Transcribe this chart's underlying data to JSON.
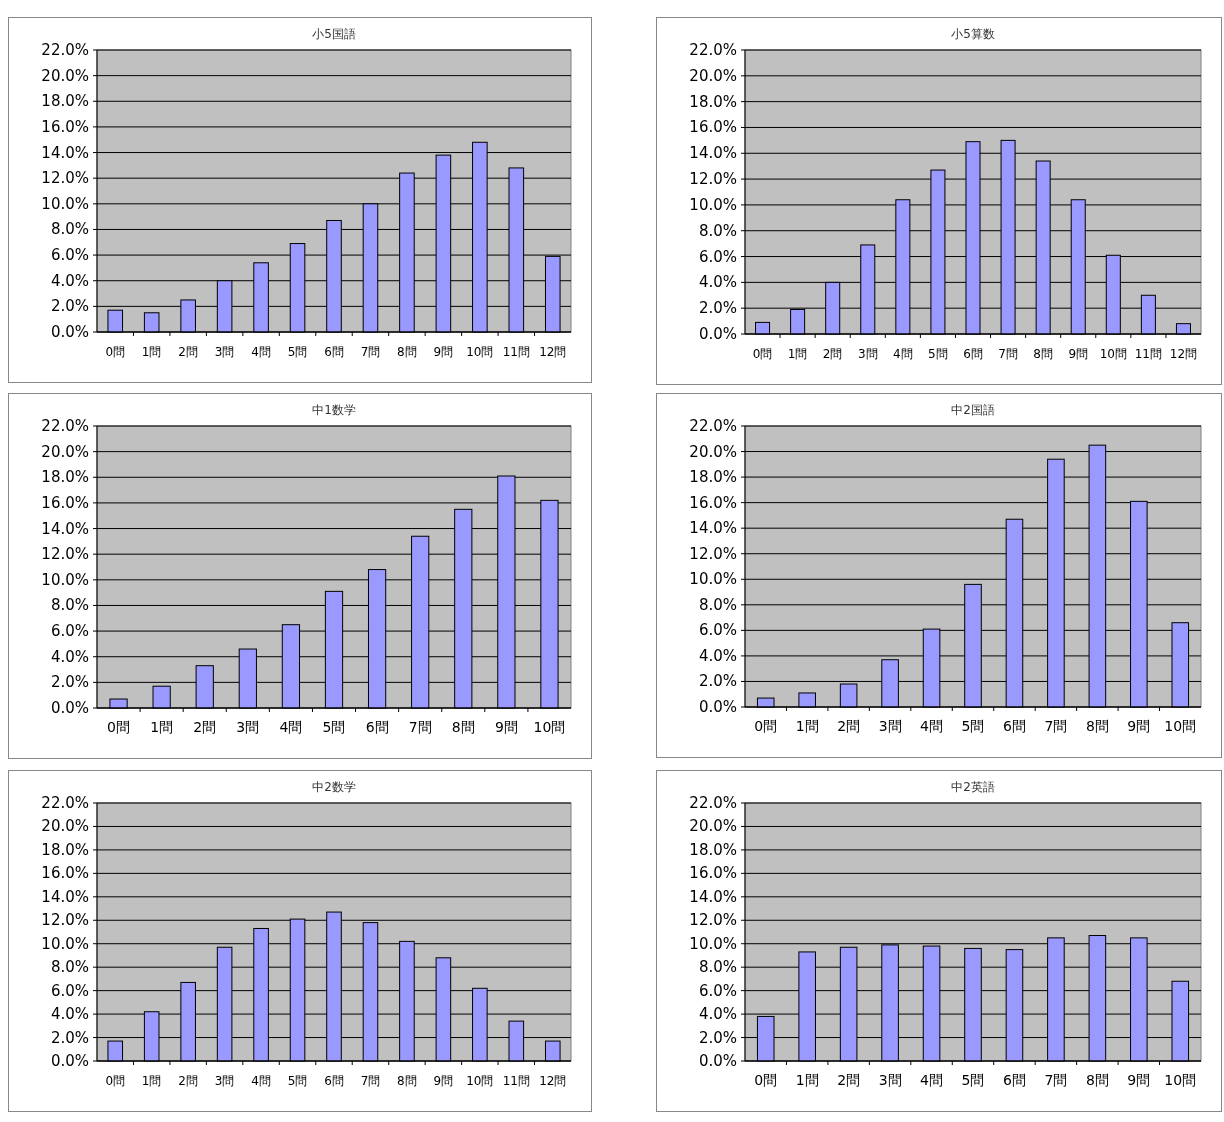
{
  "chart_data": [
    {
      "type": "bar",
      "title": "小5国語",
      "categories": [
        "0問",
        "1問",
        "2問",
        "3問",
        "4問",
        "5問",
        "6問",
        "7問",
        "8問",
        "9問",
        "10問",
        "11問",
        "12問"
      ],
      "values": [
        1.7,
        1.5,
        2.5,
        4.0,
        5.4,
        6.9,
        8.7,
        10.0,
        12.4,
        13.8,
        14.8,
        12.8,
        5.9
      ],
      "color": "#9999ff",
      "ylim": [
        0,
        22
      ],
      "yticks": [
        {
          "value": 0,
          "label": "0.0%"
        },
        {
          "value": 2,
          "label": "2.0%"
        },
        {
          "value": 4,
          "label": "4.0%"
        },
        {
          "value": 6,
          "label": "6.0%"
        },
        {
          "value": 8,
          "label": "8.0%"
        },
        {
          "value": 10,
          "label": "10.0%"
        },
        {
          "value": 12,
          "label": "12.0%"
        },
        {
          "value": 14,
          "label": "14.0%"
        },
        {
          "value": 16,
          "label": "16.0%"
        },
        {
          "value": 18,
          "label": "18.0%"
        },
        {
          "value": 20,
          "label": "20.0%"
        },
        {
          "value": 22,
          "label": "22.0%"
        }
      ],
      "grid": "y"
    },
    {
      "type": "bar",
      "title": "小5算数",
      "categories": [
        "0問",
        "1問",
        "2問",
        "3問",
        "4問",
        "5問",
        "6問",
        "7問",
        "8問",
        "9問",
        "10問",
        "11問",
        "12問"
      ],
      "values": [
        0.9,
        1.9,
        4.0,
        6.9,
        10.4,
        12.7,
        14.9,
        15.0,
        13.4,
        10.4,
        6.1,
        3.0,
        0.8
      ],
      "color": "#9999ff",
      "ylim": [
        0,
        22
      ],
      "yticks": [
        {
          "value": 0,
          "label": "0.0%"
        },
        {
          "value": 2,
          "label": "2.0%"
        },
        {
          "value": 4,
          "label": "4.0%"
        },
        {
          "value": 6,
          "label": "6.0%"
        },
        {
          "value": 8,
          "label": "8.0%"
        },
        {
          "value": 10,
          "label": "10.0%"
        },
        {
          "value": 12,
          "label": "12.0%"
        },
        {
          "value": 14,
          "label": "14.0%"
        },
        {
          "value": 16,
          "label": "16.0%"
        },
        {
          "value": 18,
          "label": "18.0%"
        },
        {
          "value": 20,
          "label": "20.0%"
        },
        {
          "value": 22,
          "label": "22.0%"
        }
      ],
      "grid": "y"
    },
    {
      "type": "bar",
      "title": "中1数学",
      "categories": [
        "0問",
        "1問",
        "2問",
        "3問",
        "4問",
        "5問",
        "6問",
        "7問",
        "8問",
        "9問",
        "10問"
      ],
      "values": [
        0.7,
        1.7,
        3.3,
        4.6,
        6.5,
        9.1,
        10.8,
        13.4,
        15.5,
        18.1,
        16.2
      ],
      "color": "#9999ff",
      "ylim": [
        0,
        22
      ],
      "yticks": [
        {
          "value": 0,
          "label": "0.0%"
        },
        {
          "value": 2,
          "label": "2.0%"
        },
        {
          "value": 4,
          "label": "4.0%"
        },
        {
          "value": 6,
          "label": "6.0%"
        },
        {
          "value": 8,
          "label": "8.0%"
        },
        {
          "value": 10,
          "label": "10.0%"
        },
        {
          "value": 12,
          "label": "12.0%"
        },
        {
          "value": 14,
          "label": "14.0%"
        },
        {
          "value": 16,
          "label": "16.0%"
        },
        {
          "value": 18,
          "label": "18.0%"
        },
        {
          "value": 20,
          "label": "20.0%"
        },
        {
          "value": 22,
          "label": "22.0%"
        }
      ],
      "grid": "y"
    },
    {
      "type": "bar",
      "title": "中2国語",
      "categories": [
        "0問",
        "1問",
        "2問",
        "3問",
        "4問",
        "5問",
        "6問",
        "7問",
        "8問",
        "9問",
        "10問"
      ],
      "values": [
        0.7,
        1.1,
        1.8,
        3.7,
        6.1,
        9.6,
        14.7,
        19.4,
        20.5,
        16.1,
        6.6
      ],
      "color": "#9999ff",
      "ylim": [
        0,
        22
      ],
      "yticks": [
        {
          "value": 0,
          "label": "0.0%"
        },
        {
          "value": 2,
          "label": "2.0%"
        },
        {
          "value": 4,
          "label": "4.0%"
        },
        {
          "value": 6,
          "label": "6.0%"
        },
        {
          "value": 8,
          "label": "8.0%"
        },
        {
          "value": 10,
          "label": "10.0%"
        },
        {
          "value": 12,
          "label": "12.0%"
        },
        {
          "value": 14,
          "label": "14.0%"
        },
        {
          "value": 16,
          "label": "16.0%"
        },
        {
          "value": 18,
          "label": "18.0%"
        },
        {
          "value": 20,
          "label": "20.0%"
        },
        {
          "value": 22,
          "label": "22.0%"
        }
      ],
      "grid": "y"
    },
    {
      "type": "bar",
      "title": "中2数学",
      "categories": [
        "0問",
        "1問",
        "2問",
        "3問",
        "4問",
        "5問",
        "6問",
        "7問",
        "8問",
        "9問",
        "10問",
        "11問",
        "12問"
      ],
      "values": [
        1.7,
        4.2,
        6.7,
        9.7,
        11.3,
        12.1,
        12.7,
        11.8,
        10.2,
        8.8,
        6.2,
        3.4,
        1.7
      ],
      "color": "#9999ff",
      "ylim": [
        0,
        22
      ],
      "yticks": [
        {
          "value": 0,
          "label": "0.0%"
        },
        {
          "value": 2,
          "label": "2.0%"
        },
        {
          "value": 4,
          "label": "4.0%"
        },
        {
          "value": 6,
          "label": "6.0%"
        },
        {
          "value": 8,
          "label": "8.0%"
        },
        {
          "value": 10,
          "label": "10.0%"
        },
        {
          "value": 12,
          "label": "12.0%"
        },
        {
          "value": 14,
          "label": "14.0%"
        },
        {
          "value": 16,
          "label": "16.0%"
        },
        {
          "value": 18,
          "label": "18.0%"
        },
        {
          "value": 20,
          "label": "20.0%"
        },
        {
          "value": 22,
          "label": "22.0%"
        }
      ],
      "grid": "y"
    },
    {
      "type": "bar",
      "title": "中2英語",
      "categories": [
        "0問",
        "1問",
        "2問",
        "3問",
        "4問",
        "5問",
        "6問",
        "7問",
        "8問",
        "9問",
        "10問"
      ],
      "values": [
        3.8,
        9.3,
        9.7,
        9.9,
        9.8,
        9.6,
        9.5,
        10.5,
        10.7,
        10.5,
        6.8
      ],
      "color": "#9999ff",
      "ylim": [
        0,
        22
      ],
      "yticks": [
        {
          "value": 0,
          "label": "0.0%"
        },
        {
          "value": 2,
          "label": "2.0%"
        },
        {
          "value": 4,
          "label": "4.0%"
        },
        {
          "value": 6,
          "label": "6.0%"
        },
        {
          "value": 8,
          "label": "8.0%"
        },
        {
          "value": 10,
          "label": "10.0%"
        },
        {
          "value": 12,
          "label": "12.0%"
        },
        {
          "value": 14,
          "label": "14.0%"
        },
        {
          "value": 16,
          "label": "16.0%"
        },
        {
          "value": 18,
          "label": "18.0%"
        },
        {
          "value": 20,
          "label": "20.0%"
        },
        {
          "value": 22,
          "label": "22.0%"
        }
      ],
      "grid": "y"
    }
  ]
}
